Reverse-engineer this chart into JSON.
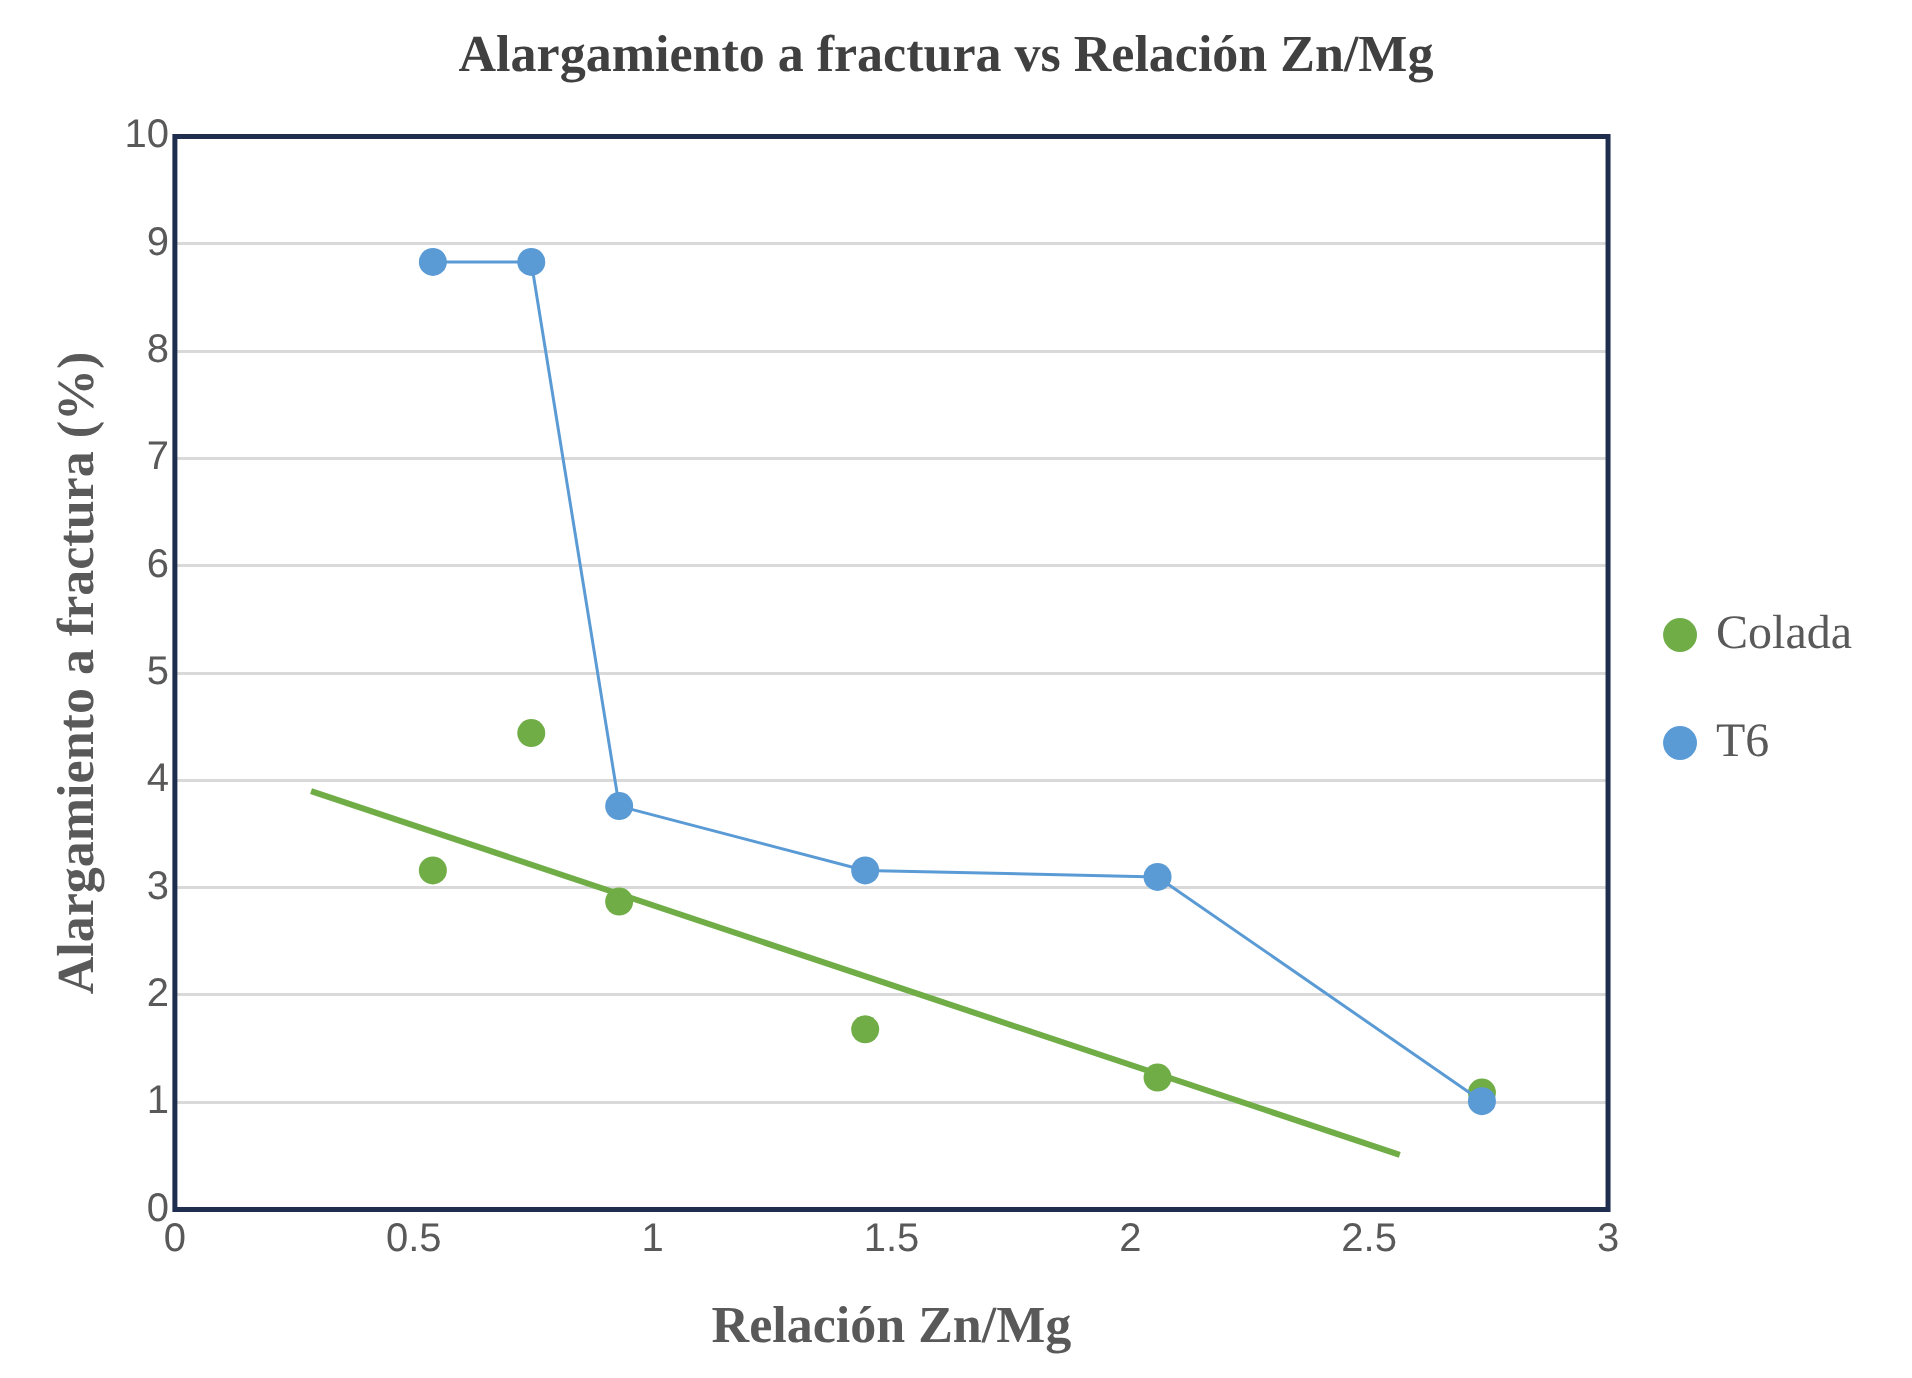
{
  "chart_data": {
    "type": "scatter",
    "title": "Alargamiento a fractura vs Relación Zn/Mg",
    "xlabel": "Relación Zn/Mg",
    "ylabel": "Alargamiento a fractura (%)",
    "xlim": [
      0,
      3
    ],
    "xticks": [
      0,
      0.5,
      1,
      1.5,
      2,
      2.5,
      3
    ],
    "ylim": [
      0,
      10
    ],
    "yticks": [
      0,
      1,
      2,
      3,
      4,
      5,
      6,
      7,
      8,
      9,
      10
    ],
    "grid": "y",
    "legend": "right",
    "marker": "circle",
    "series": [
      {
        "name": "Colada",
        "type": "scatter",
        "color": "#70ad47",
        "x": [
          0.54,
          0.746,
          0.93,
          1.445,
          2.057,
          2.736
        ],
        "values": [
          3.16,
          4.44,
          2.87,
          1.68,
          1.23,
          1.09
        ]
      },
      {
        "name": "T6",
        "type": "line",
        "color": "#5b9bd5",
        "x": [
          0.54,
          0.746,
          0.93,
          1.445,
          2.057,
          2.736
        ],
        "values": [
          8.83,
          8.83,
          3.76,
          3.16,
          3.1,
          1.01
        ]
      },
      {
        "type": "line",
        "color": "#70ad47",
        "marker": "none",
        "x": [
          0.285,
          2.564
        ],
        "values": [
          3.9,
          0.51
        ]
      }
    ]
  }
}
